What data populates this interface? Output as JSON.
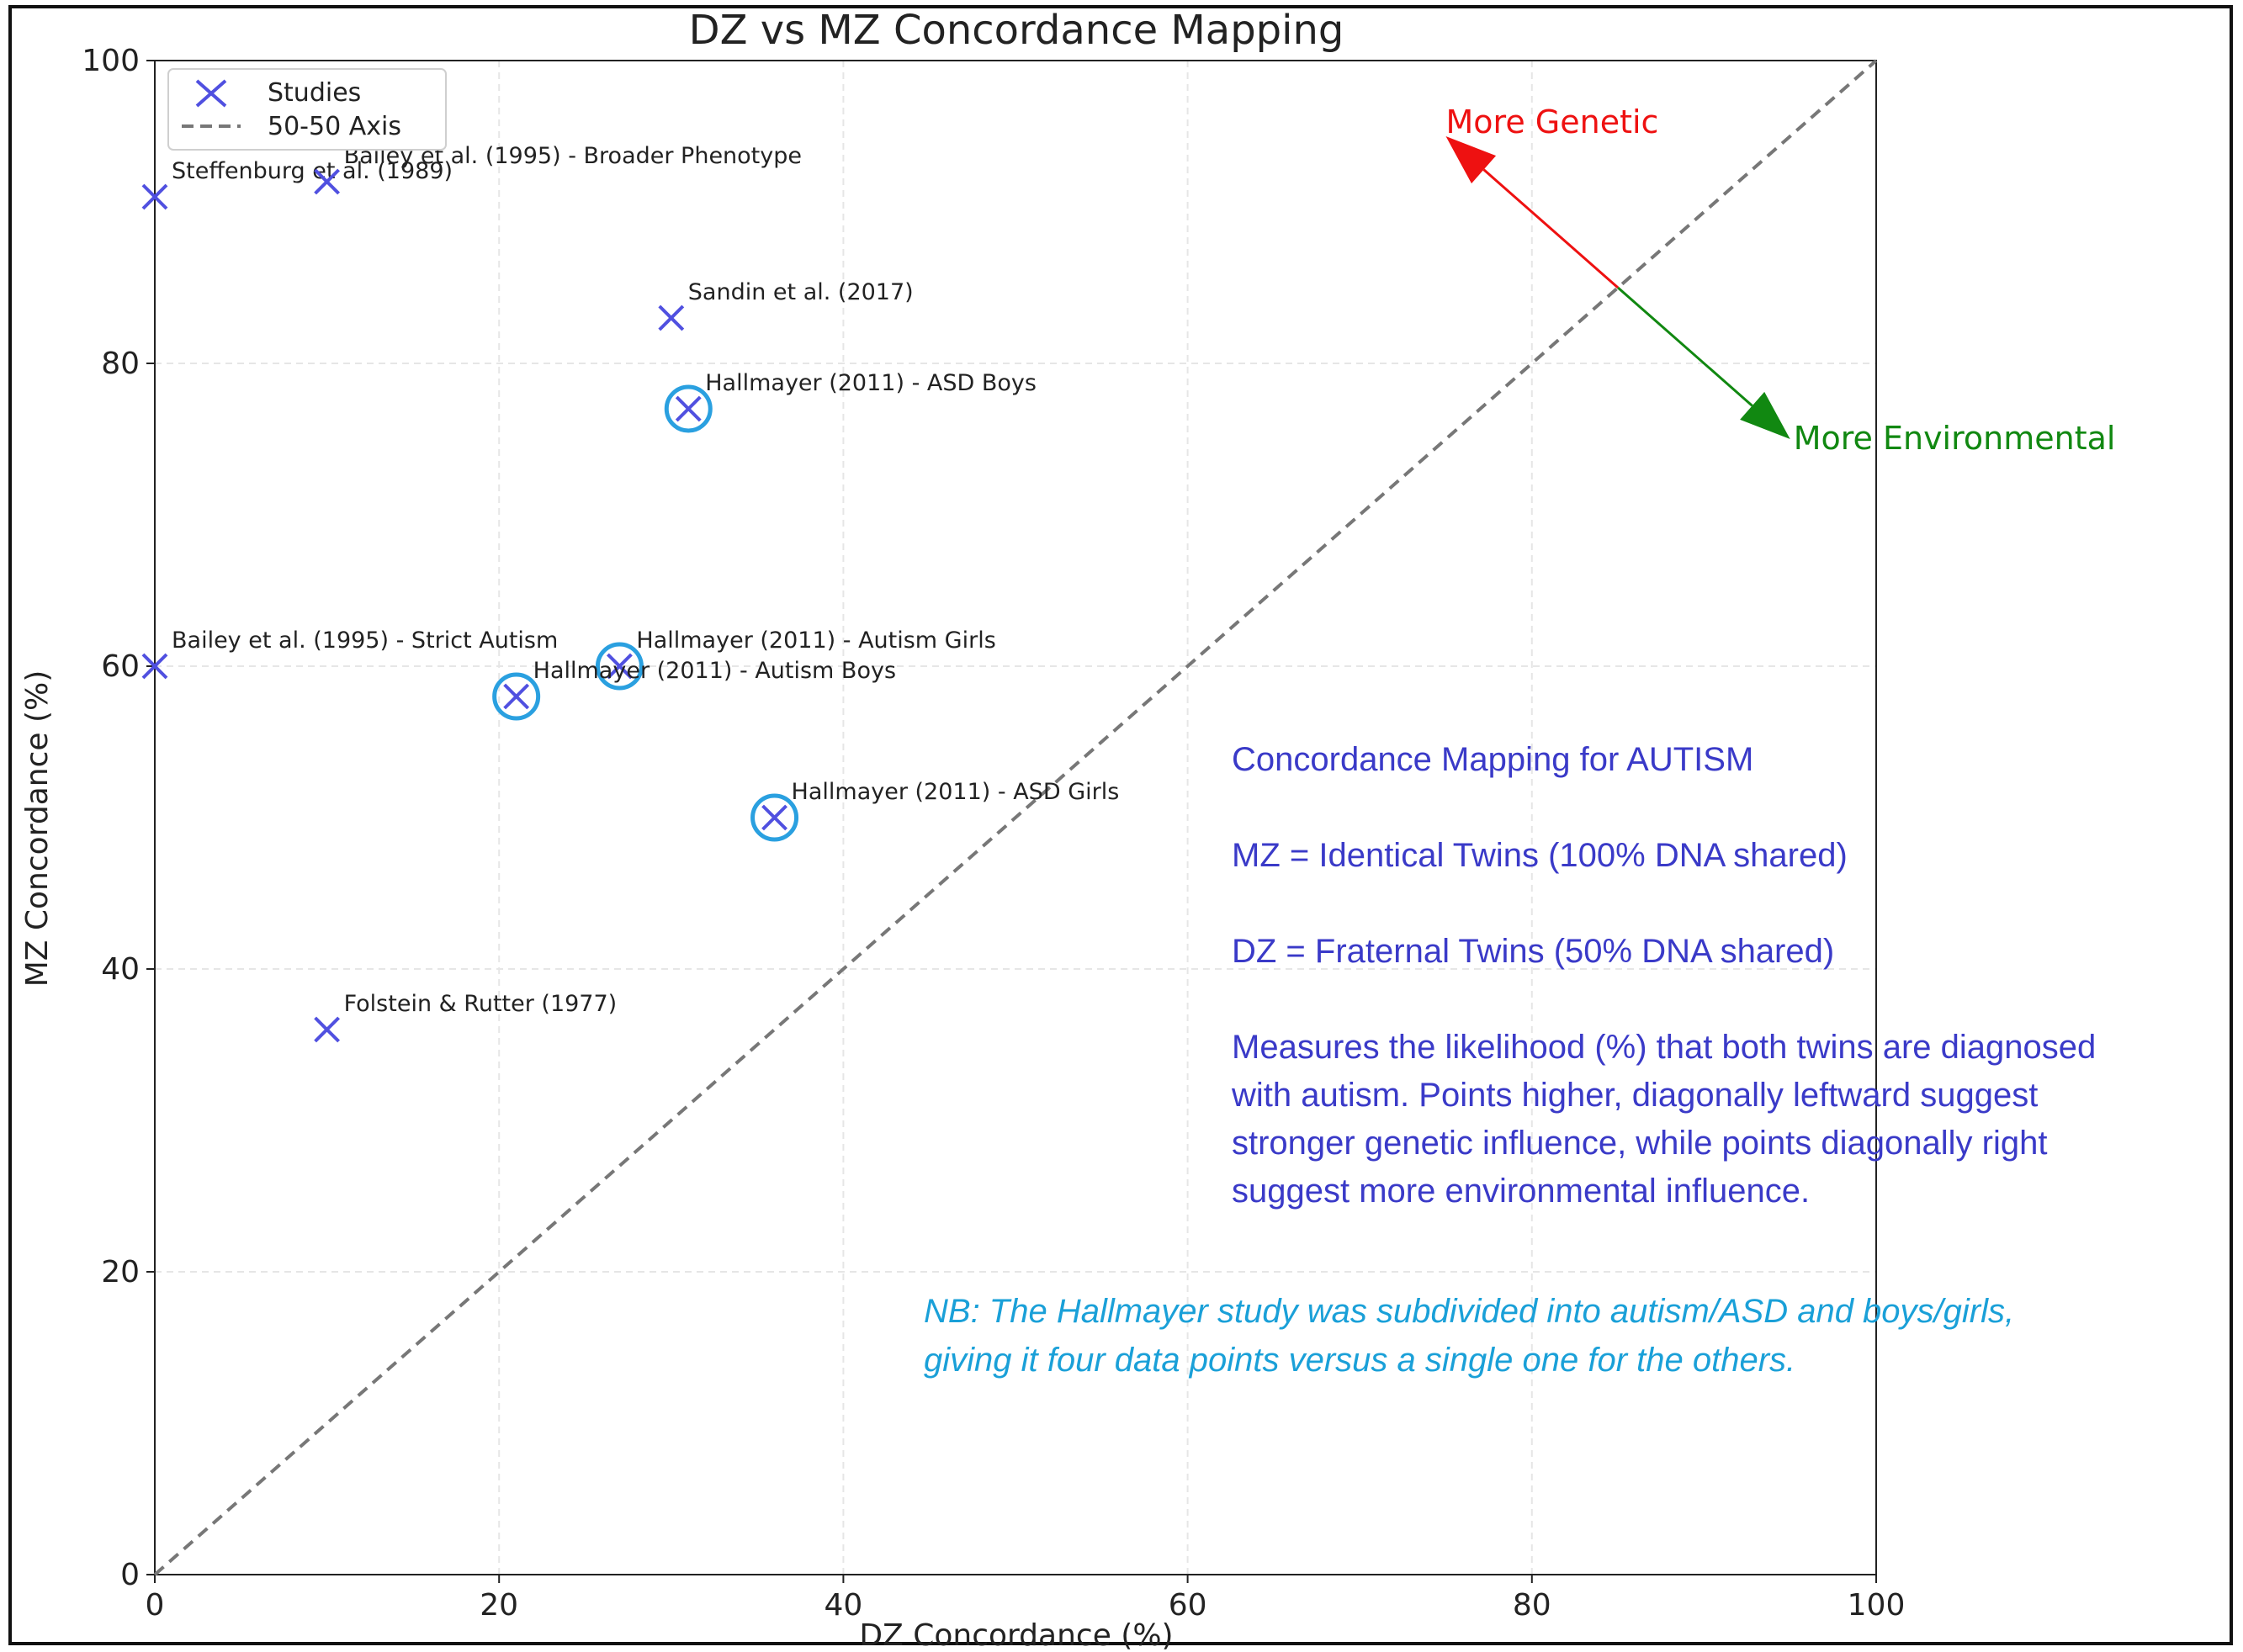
{
  "chart_data": {
    "type": "scatter",
    "title": "DZ vs MZ Concordance Mapping",
    "xlabel": "DZ Concordance (%)",
    "ylabel": "MZ Concordance (%)",
    "xlim": [
      0,
      100
    ],
    "ylim": [
      0,
      100
    ],
    "xticks": [
      "0",
      "20",
      "40",
      "60",
      "80",
      "100"
    ],
    "yticks": [
      "0",
      "20",
      "40",
      "60",
      "80",
      "100"
    ],
    "grid": true,
    "legend": {
      "placement": "top-left",
      "entries": [
        {
          "label": "Studies",
          "marker": "x",
          "color": "#5050e0"
        },
        {
          "label": "50-50 Axis",
          "style": "dashed",
          "color": "#777777"
        }
      ]
    },
    "series": [
      {
        "name": "Studies",
        "color": "#5050e0",
        "points": [
          {
            "label": "Steffenburg et al. (1989)",
            "x": 0,
            "y": 91,
            "highlight": false
          },
          {
            "label": "Bailey et al. (1995) - Broader Phenotype",
            "x": 10,
            "y": 92,
            "highlight": false
          },
          {
            "label": "Sandin et al. (2017)",
            "x": 30,
            "y": 83,
            "highlight": false
          },
          {
            "label": "Hallmayer (2011) - ASD Boys",
            "x": 31,
            "y": 77,
            "highlight": true
          },
          {
            "label": "Bailey et al. (1995) - Strict Autism",
            "x": 0,
            "y": 60,
            "highlight": false
          },
          {
            "label": "Hallmayer (2011) - Autism Girls",
            "x": 27,
            "y": 60,
            "highlight": true
          },
          {
            "label": "Hallmayer (2011) - Autism Boys",
            "x": 21,
            "y": 58,
            "highlight": true
          },
          {
            "label": "Hallmayer (2011) - ASD Girls",
            "x": 36,
            "y": 50,
            "highlight": true
          },
          {
            "label": "Folstein & Rutter (1977)",
            "x": 10,
            "y": 36,
            "highlight": false
          }
        ]
      }
    ],
    "reference_line": {
      "name": "50-50 Axis",
      "from": [
        0,
        0
      ],
      "to": [
        100,
        100
      ],
      "color": "#777777"
    },
    "highlight_color": "#2aa0e0",
    "arrows": [
      {
        "label": "More Genetic",
        "color": "#ee1111",
        "from": [
          85,
          85
        ],
        "to": [
          75,
          95
        ]
      },
      {
        "label": "More Environmental",
        "color": "#118811",
        "from": [
          85,
          85
        ],
        "to": [
          95,
          75
        ]
      }
    ]
  },
  "info_box": {
    "color": "#3a3ac8",
    "heading": "Concordance Mapping for AUTISM",
    "mz": "MZ = Identical Twins (100% DNA shared)",
    "dz": "DZ = Fraternal Twins (50% DNA shared)",
    "desc_lines": [
      "Measures the likelihood (%) that both twins are diagnosed",
      "with autism.  Points higher, diagonally leftward suggest",
      "stronger genetic influence, while points diagonally right",
      "suggest more environmental influence."
    ]
  },
  "note": {
    "color": "#1aa0d8",
    "lines": [
      "NB: The Hallmayer study was subdivided into autism/ASD and boys/girls,",
      "giving it four  data points versus a single one for the others."
    ]
  }
}
